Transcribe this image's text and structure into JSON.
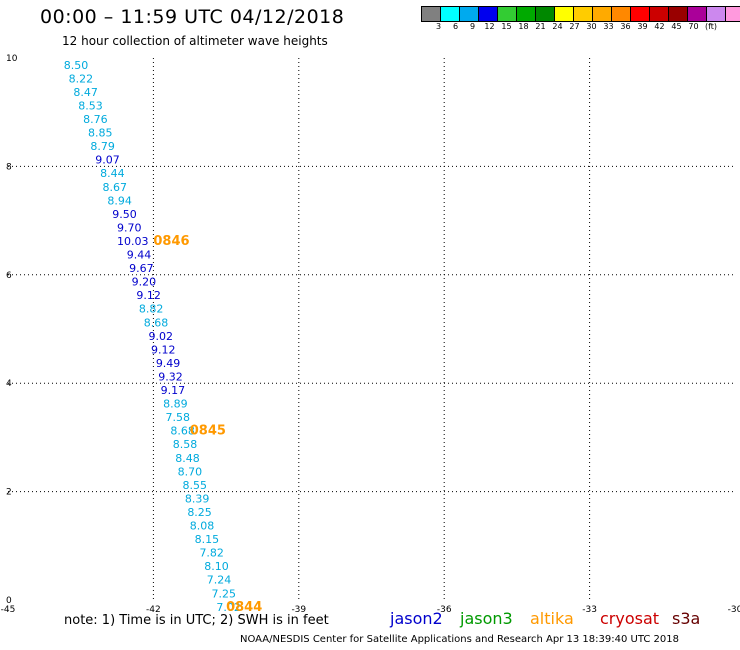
{
  "header": {
    "title": "00:00 – 11:59 UTC 04/12/2018",
    "subtitle": "12 hour collection of altimeter wave heights"
  },
  "legend": {
    "swatches": [
      "#808080",
      "#00ffff",
      "#00aaee",
      "#0000ee",
      "#33cc33",
      "#00aa00",
      "#008800",
      "#ffff00",
      "#ffcc00",
      "#ffaa00",
      "#ff8800",
      "#ff0000",
      "#cc0000",
      "#990000",
      "#aa0099",
      "#cc88ee",
      "#ff99dd",
      "#000000"
    ],
    "labels": [
      "3",
      "6",
      "9",
      "12",
      "15",
      "18",
      "21",
      "24",
      "27",
      "30",
      "33",
      "36",
      "39",
      "42",
      "45",
      "70"
    ],
    "unit": "(ft)"
  },
  "footer": {
    "note": "note: 1) Time is in UTC; 2) SWH is in feet",
    "satellites": [
      {
        "name": "jason2",
        "color": "#0000cc"
      },
      {
        "name": "jason3",
        "color": "#009900"
      },
      {
        "name": "altika",
        "color": "#ff9900"
      },
      {
        "name": "cryosat",
        "color": "#cc0000"
      },
      {
        "name": "s3a",
        "color": "#660000"
      }
    ],
    "credit": "NOAA/NESDIS Center for Satellite Applications and Research   Apr 13 18:39:40 UTC 2018"
  },
  "chart_data": {
    "type": "scatter",
    "xlim": [
      -45,
      -30
    ],
    "ylim": [
      0,
      10
    ],
    "xticks": [
      "-45",
      "-42",
      "-39",
      "-36",
      "-33",
      "-30"
    ],
    "yticks": [
      "0",
      "2",
      "4",
      "6",
      "8",
      "10"
    ],
    "grid": true,
    "points": [
      {
        "x": -43.85,
        "y": 9.8,
        "label": "8.50",
        "color": "#00aadd"
      },
      {
        "x": -43.75,
        "y": 9.55,
        "label": "8.22",
        "color": "#00aadd"
      },
      {
        "x": -43.65,
        "y": 9.3,
        "label": "8.47",
        "color": "#00aadd"
      },
      {
        "x": -43.55,
        "y": 9.05,
        "label": "8.53",
        "color": "#00aadd"
      },
      {
        "x": -43.45,
        "y": 8.8,
        "label": "8.76",
        "color": "#00aadd"
      },
      {
        "x": -43.35,
        "y": 8.55,
        "label": "8.85",
        "color": "#00aadd"
      },
      {
        "x": -43.3,
        "y": 8.3,
        "label": "8.79",
        "color": "#00aadd"
      },
      {
        "x": -43.2,
        "y": 8.05,
        "label": "9.07",
        "color": "#0000cc"
      },
      {
        "x": -43.1,
        "y": 7.8,
        "label": "8.44",
        "color": "#00aadd"
      },
      {
        "x": -43.05,
        "y": 7.55,
        "label": "8.67",
        "color": "#00aadd"
      },
      {
        "x": -42.95,
        "y": 7.3,
        "label": "8.94",
        "color": "#00aadd"
      },
      {
        "x": -42.85,
        "y": 7.05,
        "label": "9.50",
        "color": "#0000cc"
      },
      {
        "x": -42.75,
        "y": 6.8,
        "label": "9.70",
        "color": "#0000cc"
      },
      {
        "x": -42.75,
        "y": 6.55,
        "label": "10.03",
        "color": "#0000cc"
      },
      {
        "x": -42.55,
        "y": 6.3,
        "label": "9.44",
        "color": "#0000cc"
      },
      {
        "x": -42.5,
        "y": 6.05,
        "label": "9.67",
        "color": "#0000cc"
      },
      {
        "x": -42.45,
        "y": 5.8,
        "label": "9.20",
        "color": "#0000cc"
      },
      {
        "x": -42.35,
        "y": 5.55,
        "label": "9.12",
        "color": "#0000cc"
      },
      {
        "x": -42.3,
        "y": 5.3,
        "label": "8.82",
        "color": "#00aadd"
      },
      {
        "x": -42.2,
        "y": 5.05,
        "label": "8.68",
        "color": "#00aadd"
      },
      {
        "x": -42.1,
        "y": 4.8,
        "label": "9.02",
        "color": "#0000cc"
      },
      {
        "x": -42.05,
        "y": 4.55,
        "label": "9.12",
        "color": "#0000cc"
      },
      {
        "x": -41.95,
        "y": 4.3,
        "label": "9.49",
        "color": "#0000cc"
      },
      {
        "x": -41.9,
        "y": 4.05,
        "label": "9.32",
        "color": "#0000cc"
      },
      {
        "x": -41.85,
        "y": 3.8,
        "label": "9.17",
        "color": "#0000cc"
      },
      {
        "x": -41.8,
        "y": 3.55,
        "label": "8.89",
        "color": "#00aadd"
      },
      {
        "x": -41.75,
        "y": 3.3,
        "label": "7.58",
        "color": "#00aadd"
      },
      {
        "x": -41.65,
        "y": 3.05,
        "label": "8.68",
        "color": "#00aadd"
      },
      {
        "x": -41.6,
        "y": 2.8,
        "label": "8.58",
        "color": "#00aadd"
      },
      {
        "x": -41.55,
        "y": 2.55,
        "label": "8.48",
        "color": "#00aadd"
      },
      {
        "x": -41.5,
        "y": 2.3,
        "label": "8.70",
        "color": "#00aadd"
      },
      {
        "x": -41.4,
        "y": 2.05,
        "label": "8.55",
        "color": "#00aadd"
      },
      {
        "x": -41.35,
        "y": 1.8,
        "label": "8.39",
        "color": "#00aadd"
      },
      {
        "x": -41.3,
        "y": 1.55,
        "label": "8.25",
        "color": "#00aadd"
      },
      {
        "x": -41.25,
        "y": 1.3,
        "label": "8.08",
        "color": "#00aadd"
      },
      {
        "x": -41.15,
        "y": 1.05,
        "label": "8.15",
        "color": "#00aadd"
      },
      {
        "x": -41.05,
        "y": 0.8,
        "label": "7.82",
        "color": "#00aadd"
      },
      {
        "x": -40.95,
        "y": 0.55,
        "label": "8.10",
        "color": "#00aadd"
      },
      {
        "x": -40.9,
        "y": 0.3,
        "label": "7.24",
        "color": "#00aadd"
      },
      {
        "x": -40.8,
        "y": 0.05,
        "label": "7.25",
        "color": "#00aadd"
      },
      {
        "x": -40.7,
        "y": -0.2,
        "label": "7.02",
        "color": "#00aadd"
      }
    ],
    "annotations": [
      {
        "x": -42.0,
        "y": 6.55,
        "label": "0846",
        "color": "#ff9900"
      },
      {
        "x": -41.25,
        "y": 3.05,
        "label": "0845",
        "color": "#ff9900"
      },
      {
        "x": -40.5,
        "y": -0.2,
        "label": "0844",
        "color": "#ff9900"
      }
    ]
  }
}
